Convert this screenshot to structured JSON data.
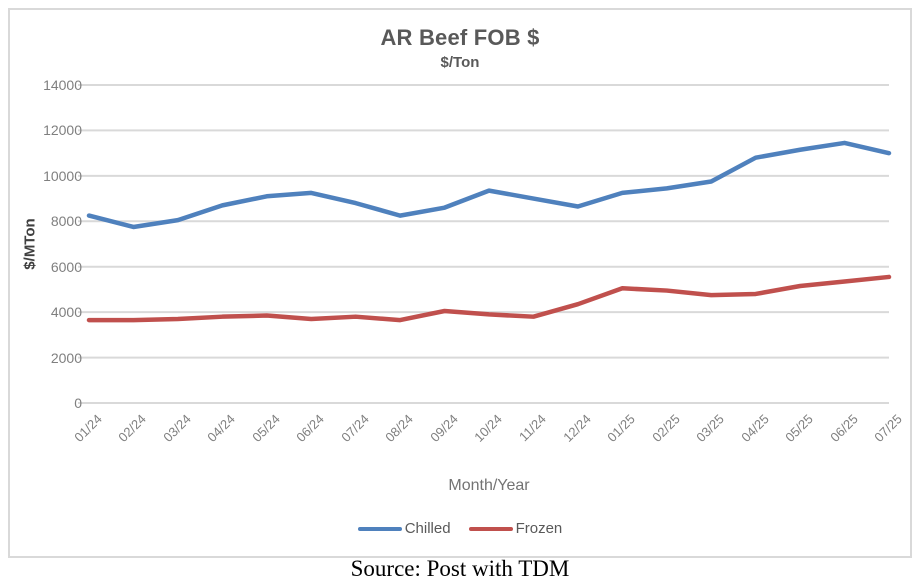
{
  "chart_data": {
    "type": "line",
    "title": "AR Beef FOB $",
    "subtitle": "$/Ton",
    "xlabel": "Month/Year",
    "ylabel": "$/MTon",
    "source_note": "Source: Post with TDM",
    "categories": [
      "01/24",
      "02/24",
      "03/24",
      "04/24",
      "05/24",
      "06/24",
      "07/24",
      "08/24",
      "09/24",
      "10/24",
      "11/24",
      "12/24",
      "01/25",
      "02/25",
      "03/25",
      "04/25",
      "05/25",
      "06/25",
      "07/25"
    ],
    "series": [
      {
        "name": "Chilled",
        "color": "#4F81BD",
        "values": [
          8250,
          7750,
          8050,
          8700,
          9100,
          9250,
          8800,
          8250,
          8600,
          9350,
          9000,
          8650,
          9250,
          9450,
          9750,
          10800,
          11150,
          11450,
          11000
        ]
      },
      {
        "name": "Frozen",
        "color": "#C0504D",
        "values": [
          3650,
          3650,
          3700,
          3800,
          3850,
          3700,
          3800,
          3650,
          4050,
          3900,
          3800,
          4350,
          5050,
          4950,
          4750,
          4800,
          5150,
          5350,
          5550
        ]
      }
    ],
    "ylim": [
      0,
      14000
    ],
    "yticks": [
      0,
      2000,
      4000,
      6000,
      8000,
      10000,
      12000,
      14000
    ],
    "grid": true,
    "legend_position": "bottom"
  },
  "colors": {
    "gridline": "#D9D9D9",
    "frame_border": "#D9D9D9",
    "title_text": "#595959",
    "tick_text": "#7F7F7F"
  }
}
